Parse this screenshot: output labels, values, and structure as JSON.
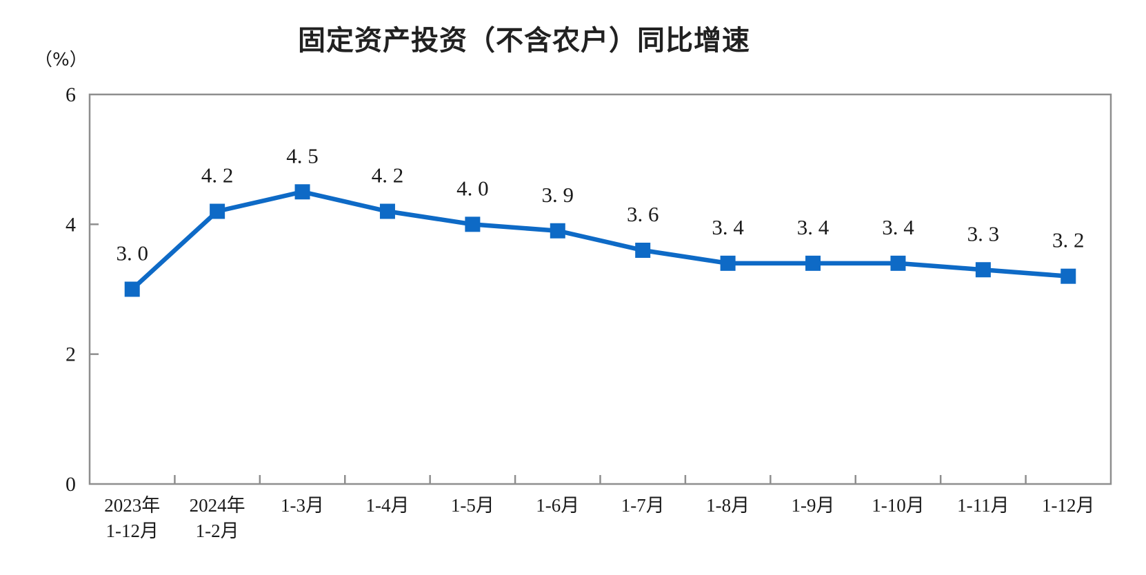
{
  "chart_data": {
    "type": "line",
    "title": "固定资产投资（不含农户）同比增速",
    "ylabel": "（%）",
    "xlabel": "",
    "categories": [
      "2023年\n1-12月",
      "2024年\n1-2月",
      "1-3月",
      "1-4月",
      "1-5月",
      "1-6月",
      "1-7月",
      "1-8月",
      "1-9月",
      "1-10月",
      "1-11月",
      "1-12月"
    ],
    "values": [
      3.0,
      4.2,
      4.5,
      4.2,
      4.0,
      3.9,
      3.6,
      3.4,
      3.4,
      3.4,
      3.3,
      3.2
    ],
    "data_labels": [
      "3. 0",
      "4. 2",
      "4. 5",
      "4. 2",
      "4. 0",
      "3. 9",
      "3. 6",
      "3. 4",
      "3. 4",
      "3. 4",
      "3. 3",
      "3. 2"
    ],
    "y_ticks": [
      0,
      2,
      4,
      6
    ],
    "ylim": [
      0,
      6
    ],
    "grid": false,
    "legend": "none",
    "marker": "square",
    "colors": {
      "line": "#0E6AC6",
      "marker": "#0E6AC6",
      "axis": "#8E8E8E",
      "text": "#1A1A1A",
      "title": "#212121",
      "background": "#FFFFFF"
    }
  }
}
